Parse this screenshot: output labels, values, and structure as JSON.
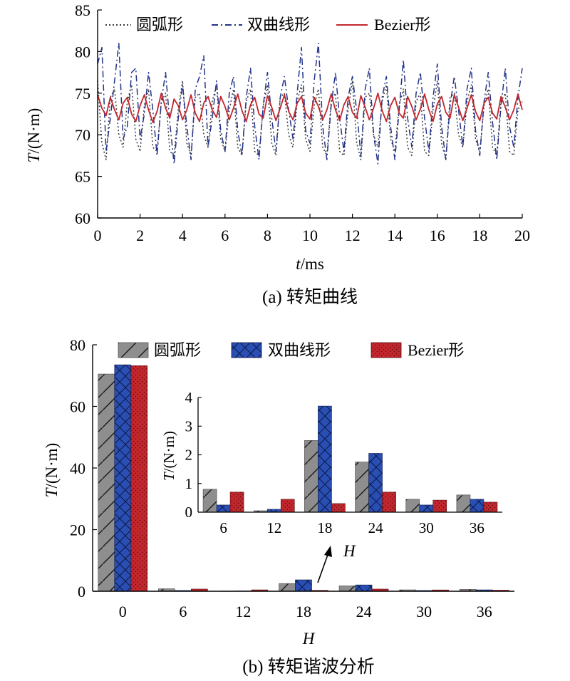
{
  "chart_data": [
    {
      "id": "a",
      "type": "line",
      "caption": "(a) 转矩曲线",
      "xlabel_var": "t",
      "xlabel_unit": "/ms",
      "ylabel_var": "T",
      "ylabel_unit": "/(N·m)",
      "xlim": [
        0,
        20
      ],
      "ylim": [
        60,
        85
      ],
      "xticks": [
        0,
        2,
        4,
        6,
        8,
        10,
        12,
        14,
        16,
        18,
        20
      ],
      "yticks": [
        60,
        65,
        70,
        75,
        80,
        85
      ],
      "xtick_labels": [
        "0",
        "2",
        "4",
        "6",
        "8",
        "10",
        "12",
        "14",
        "16",
        "18",
        "20"
      ],
      "ytick_labels": [
        "60",
        "65",
        "70",
        "75",
        "80",
        "85"
      ],
      "grid": false,
      "legend_position": "top",
      "series": [
        {
          "name": "圆弧形",
          "style": "dotted",
          "color": "#3a3a3a",
          "x": [
            0,
            0.2,
            0.4,
            0.6,
            0.8,
            1.0,
            1.2,
            1.4,
            1.6,
            1.8,
            2.0,
            2.2,
            2.4,
            2.6,
            2.8,
            3.0,
            3.2,
            3.4,
            3.6,
            3.8,
            4.0,
            4.2,
            4.4,
            4.6,
            4.8,
            5.0,
            5.2,
            5.4,
            5.6,
            5.8,
            6.0,
            6.2,
            6.4,
            6.6,
            6.8,
            7.0,
            7.2,
            7.4,
            7.6,
            7.8,
            8.0,
            8.2,
            8.4,
            8.6,
            8.8,
            9.0,
            9.2,
            9.4,
            9.6,
            9.8,
            10.0,
            10.2,
            10.4,
            10.6,
            10.8,
            11.0,
            11.2,
            11.4,
            11.6,
            11.8,
            12.0,
            12.2,
            12.4,
            12.6,
            12.8,
            13.0,
            13.2,
            13.4,
            13.6,
            13.8,
            14.0,
            14.2,
            14.4,
            14.6,
            14.8,
            15.0,
            15.2,
            15.4,
            15.6,
            15.8,
            16.0,
            16.2,
            16.4,
            16.6,
            16.8,
            17.0,
            17.2,
            17.4,
            17.6,
            17.8,
            18.0,
            18.2,
            18.4,
            18.6,
            18.8,
            19.0,
            19.2,
            19.4,
            19.6,
            19.8,
            20.0
          ],
          "y": [
            76.5,
            69.0,
            67.0,
            74.5,
            75.5,
            70.0,
            68.5,
            74.0,
            76.0,
            69.5,
            68.0,
            73.5,
            75.5,
            68.5,
            68.0,
            74.0,
            75.0,
            68.0,
            67.5,
            73.0,
            76.5,
            69.0,
            67.5,
            74.5,
            75.0,
            70.0,
            68.5,
            74.0,
            76.0,
            69.5,
            68.0,
            73.0,
            75.5,
            68.5,
            67.5,
            74.0,
            75.5,
            68.0,
            67.5,
            73.5,
            76.0,
            69.0,
            67.5,
            74.5,
            75.0,
            70.0,
            68.5,
            74.0,
            76.0,
            69.5,
            68.0,
            73.5,
            75.5,
            68.5,
            67.5,
            74.0,
            75.0,
            68.0,
            67.5,
            73.0,
            76.5,
            69.0,
            67.0,
            74.5,
            75.0,
            70.0,
            68.5,
            74.0,
            76.0,
            69.5,
            68.0,
            73.5,
            75.5,
            68.5,
            67.5,
            74.0,
            75.0,
            68.0,
            67.5,
            73.0,
            76.5,
            69.0,
            67.0,
            74.5,
            75.0,
            70.0,
            68.5,
            74.0,
            76.0,
            69.5,
            68.0,
            73.5,
            75.5,
            68.5,
            67.5,
            74.0,
            75.0,
            68.0,
            67.5,
            73.0,
            74.0
          ]
        },
        {
          "name": "双曲线形",
          "style": "dashdot",
          "color": "#23338a",
          "x": [
            0,
            0.2,
            0.4,
            0.6,
            0.8,
            1.0,
            1.2,
            1.4,
            1.6,
            1.8,
            2.0,
            2.2,
            2.4,
            2.6,
            2.8,
            3.0,
            3.2,
            3.4,
            3.6,
            3.8,
            4.0,
            4.2,
            4.4,
            4.6,
            4.8,
            5.0,
            5.2,
            5.4,
            5.6,
            5.8,
            6.0,
            6.2,
            6.4,
            6.6,
            6.8,
            7.0,
            7.2,
            7.4,
            7.6,
            7.8,
            8.0,
            8.2,
            8.4,
            8.6,
            8.8,
            9.0,
            9.2,
            9.4,
            9.6,
            9.8,
            10.0,
            10.2,
            10.4,
            10.6,
            10.8,
            11.0,
            11.2,
            11.4,
            11.6,
            11.8,
            12.0,
            12.2,
            12.4,
            12.6,
            12.8,
            13.0,
            13.2,
            13.4,
            13.6,
            13.8,
            14.0,
            14.2,
            14.4,
            14.6,
            14.8,
            15.0,
            15.2,
            15.4,
            15.6,
            15.8,
            16.0,
            16.2,
            16.4,
            16.6,
            16.8,
            17.0,
            17.2,
            17.4,
            17.6,
            17.8,
            18.0,
            18.2,
            18.4,
            18.6,
            18.8,
            19.0,
            19.2,
            19.4,
            19.6,
            19.8,
            20.0
          ],
          "y": [
            78.5,
            80.5,
            68.0,
            72.0,
            76.5,
            81.0,
            69.5,
            71.0,
            77.5,
            78.0,
            69.5,
            72.5,
            77.5,
            73.0,
            67.5,
            74.0,
            77.5,
            71.5,
            66.5,
            72.0,
            76.0,
            71.0,
            67.0,
            75.5,
            77.0,
            79.5,
            68.5,
            72.0,
            76.5,
            70.5,
            68.0,
            75.0,
            77.0,
            70.5,
            67.5,
            74.5,
            78.0,
            71.0,
            67.0,
            73.5,
            77.5,
            72.0,
            68.0,
            74.5,
            77.0,
            73.0,
            69.5,
            75.0,
            80.5,
            70.5,
            69.0,
            76.5,
            81.0,
            71.0,
            67.0,
            73.5,
            77.5,
            72.0,
            68.0,
            74.5,
            77.0,
            73.0,
            67.5,
            75.5,
            78.0,
            70.0,
            66.5,
            74.5,
            77.0,
            71.0,
            67.0,
            73.0,
            79.0,
            72.0,
            68.5,
            75.0,
            77.5,
            72.0,
            68.0,
            74.5,
            78.5,
            71.0,
            67.0,
            73.5,
            77.0,
            73.0,
            68.5,
            75.5,
            78.0,
            70.5,
            67.5,
            74.0,
            77.5,
            71.5,
            67.0,
            73.5,
            78.0,
            71.0,
            68.5,
            74.5,
            78.0
          ]
        },
        {
          "name": "Bezier形",
          "style": "solid",
          "color": "#c1272d",
          "x": [
            0,
            0.2,
            0.4,
            0.6,
            0.8,
            1.0,
            1.2,
            1.4,
            1.6,
            1.8,
            2.0,
            2.2,
            2.4,
            2.6,
            2.8,
            3.0,
            3.2,
            3.4,
            3.6,
            3.8,
            4.0,
            4.2,
            4.4,
            4.6,
            4.8,
            5.0,
            5.2,
            5.4,
            5.6,
            5.8,
            6.0,
            6.2,
            6.4,
            6.6,
            6.8,
            7.0,
            7.2,
            7.4,
            7.6,
            7.8,
            8.0,
            8.2,
            8.4,
            8.6,
            8.8,
            9.0,
            9.2,
            9.4,
            9.6,
            9.8,
            10.0,
            10.2,
            10.4,
            10.6,
            10.8,
            11.0,
            11.2,
            11.4,
            11.6,
            11.8,
            12.0,
            12.2,
            12.4,
            12.6,
            12.8,
            13.0,
            13.2,
            13.4,
            13.6,
            13.8,
            14.0,
            14.2,
            14.4,
            14.6,
            14.8,
            15.0,
            15.2,
            15.4,
            15.6,
            15.8,
            16.0,
            16.2,
            16.4,
            16.6,
            16.8,
            17.0,
            17.2,
            17.4,
            17.6,
            17.8,
            18.0,
            18.2,
            18.4,
            18.6,
            18.8,
            19.0,
            19.2,
            19.4,
            19.6,
            19.8,
            20.0
          ],
          "y": [
            74.8,
            73.2,
            72.3,
            74.5,
            73.0,
            71.8,
            73.8,
            74.5,
            72.5,
            71.6,
            73.5,
            74.8,
            73.0,
            71.5,
            72.8,
            75.0,
            73.2,
            72.0,
            74.3,
            73.5,
            71.8,
            73.0,
            74.8,
            72.6,
            71.6,
            73.8,
            74.6,
            73.0,
            72.1,
            74.6,
            73.4,
            71.8,
            73.2,
            74.9,
            72.9,
            71.6,
            73.6,
            74.5,
            72.5,
            72.0,
            74.7,
            73.3,
            71.7,
            73.2,
            74.8,
            72.8,
            71.8,
            73.8,
            74.6,
            72.6,
            71.9,
            74.5,
            73.4,
            71.8,
            73.0,
            74.9,
            73.0,
            71.7,
            73.6,
            74.6,
            72.7,
            72.0,
            74.7,
            73.3,
            71.8,
            73.2,
            75.0,
            72.9,
            71.6,
            73.5,
            74.5,
            72.6,
            72.0,
            74.6,
            73.4,
            71.8,
            73.1,
            74.9,
            73.0,
            71.6,
            73.7,
            74.6,
            72.7,
            72.0,
            74.8,
            73.3,
            71.7,
            73.2,
            74.8,
            72.8,
            71.7,
            73.8,
            74.5,
            72.6,
            71.9,
            74.6,
            73.3,
            71.8,
            73.0,
            74.9,
            73.0
          ]
        }
      ]
    },
    {
      "id": "b",
      "type": "bar",
      "caption": "(b) 转矩谐波分析",
      "xlabel": "H",
      "ylabel_var": "T",
      "ylabel_unit": "/(N·m)",
      "categories": [
        "0",
        "6",
        "12",
        "18",
        "24",
        "30",
        "36"
      ],
      "ylim": [
        0,
        80
      ],
      "yticks": [
        0,
        20,
        40,
        60,
        80
      ],
      "ytick_labels": [
        "0",
        "20",
        "40",
        "60",
        "80"
      ],
      "grid": false,
      "legend_position": "top",
      "series": [
        {
          "name": "圆弧形",
          "color": "#8e8e8e",
          "pattern": "diagonal",
          "values": [
            70.5,
            0.8,
            0.05,
            2.5,
            1.75,
            0.45,
            0.6
          ]
        },
        {
          "name": "双曲线形",
          "color": "#2a4fb4",
          "pattern": "crosshatch",
          "values": [
            73.5,
            0.25,
            0.1,
            3.7,
            2.05,
            0.25,
            0.45
          ]
        },
        {
          "name": "Bezier形",
          "color": "#c1272d",
          "pattern": "dots",
          "values": [
            73.2,
            0.7,
            0.45,
            0.3,
            0.7,
            0.42,
            0.35
          ]
        }
      ],
      "inset": {
        "categories": [
          "6",
          "12",
          "18",
          "24",
          "30",
          "36"
        ],
        "ylim": [
          0,
          4
        ],
        "yticks": [
          0,
          1,
          2,
          3,
          4
        ],
        "ytick_labels": [
          "0",
          "1",
          "2",
          "3",
          "4"
        ],
        "ylabel_var": "T",
        "ylabel_unit": "/(N·m)",
        "xlabel": "H"
      }
    }
  ]
}
